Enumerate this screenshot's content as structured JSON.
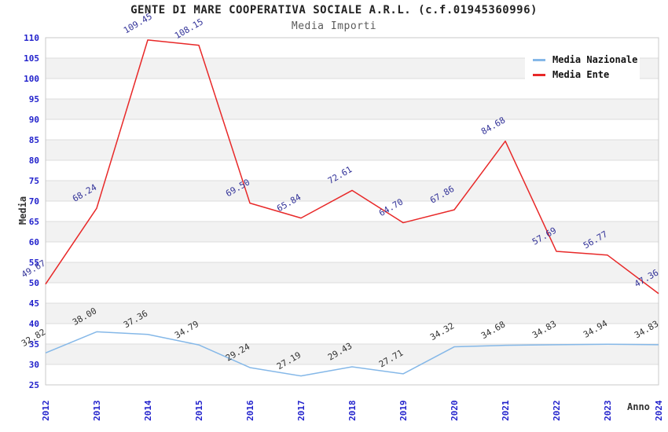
{
  "title": "GENTE DI MARE COOPERATIVA SOCIALE A.R.L. (c.f.01945360996)",
  "subtitle": "Media Importi",
  "axes": {
    "y_title": "Media",
    "x_title": "Anno"
  },
  "legend": {
    "items": [
      {
        "label": "Media Nazionale",
        "color": "#85b8e8"
      },
      {
        "label": "Media Ente",
        "color": "#e82828"
      }
    ]
  },
  "colors": {
    "tick_label": "#2222cc",
    "band_fill": "#f2f2f2",
    "grid_line": "#dcdcdc",
    "plot_border": "#c9c9c9",
    "title": "#222222",
    "subtitle": "#5a5a5a",
    "axis_title": "#333333"
  },
  "chart_data": {
    "type": "line",
    "title": "GENTE DI MARE COOPERATIVA SOCIALE A.R.L. (c.f.01945360996)",
    "subtitle": "Media Importi",
    "xlabel": "Anno",
    "ylabel": "Media",
    "ylim": [
      25,
      110
    ],
    "y_step": 5,
    "grid": "horizontal-bands-alternating",
    "legend_position": "top-right",
    "categories": [
      "2012",
      "2013",
      "2014",
      "2015",
      "2016",
      "2017",
      "2018",
      "2019",
      "2020",
      "2021",
      "2022",
      "2023",
      "2024"
    ],
    "series": [
      {
        "name": "Media Nazionale",
        "color": "#85b8e8",
        "label_color": "#333333",
        "values": [
          32.82,
          38.0,
          37.36,
          34.79,
          29.24,
          27.19,
          29.43,
          27.71,
          34.32,
          34.68,
          34.83,
          34.94,
          34.83
        ]
      },
      {
        "name": "Media Ente",
        "color": "#e82828",
        "label_color": "#333399",
        "values": [
          49.67,
          68.24,
          109.45,
          108.15,
          69.5,
          65.84,
          72.61,
          64.7,
          67.86,
          84.68,
          57.69,
          56.77,
          47.36
        ]
      }
    ]
  }
}
